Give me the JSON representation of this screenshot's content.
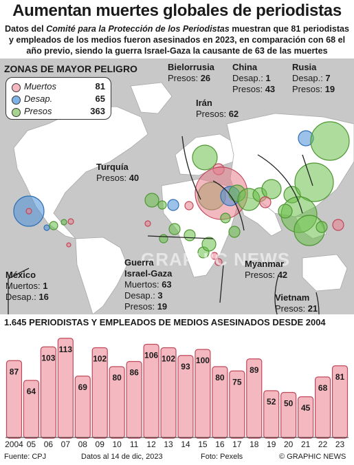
{
  "title": "Aumentan muertes globales de periodistas",
  "subtitle": {
    "part1": "Datos del ",
    "org": "Comité para la Protección de los Periodistas",
    "part2": " muestran que 81 periodistas y empleados de los medios fueron asesinados en 2023, en comparación con 68 el año previo, siendo la guerra Israel-Gaza la causante de 63 de las muertes"
  },
  "zones": {
    "title": "ZONAS DE MAYOR PELIGRO",
    "legend": [
      {
        "label": "Muertos",
        "value": "81",
        "color": "#e87f8e"
      },
      {
        "label": "Desap.",
        "value": "65",
        "color": "#4a90d9"
      },
      {
        "label": "Presos",
        "value": "363",
        "color": "#6cbf4b"
      }
    ]
  },
  "callouts": {
    "bielorrusia": {
      "name": "Bielorrusia",
      "l1": "Presos: ",
      "v1": "26"
    },
    "china": {
      "name": "China",
      "l1": "Desap.: ",
      "v1": "1",
      "l2": "Presos: ",
      "v2": "43"
    },
    "rusia": {
      "name": "Rusia",
      "l1": "Desap.: ",
      "v1": "7",
      "l2": "Presos: ",
      "v2": "19"
    },
    "iran": {
      "name": "Irán",
      "l1": "Presos: ",
      "v1": "62"
    },
    "turquia": {
      "name": "Turquía",
      "l1": "Presos: ",
      "v1": "40"
    },
    "mexico": {
      "name": "México",
      "l1": "Muertos: ",
      "v1": "1",
      "l2": "Desap.: ",
      "v2": "16"
    },
    "guerra": {
      "name1": "Guerra",
      "name2": "Israel-Gaza",
      "l1": "Muertos: ",
      "v1": "63",
      "l2": "Desap.: ",
      "v2": "3",
      "l3": "Presos: ",
      "v3": "19"
    },
    "myanmar": {
      "name": "Myanmar",
      "l1": "Presos: ",
      "v1": "42"
    },
    "vietnam": {
      "name": "Vietnam",
      "l1": "Presos: ",
      "v1": "21"
    }
  },
  "watermark": "GRAPHIC NEWS",
  "chart_title": "1.645 PERIODISTAS Y EMPLEADOS DE MEDIOS ASESINADOS DESDE 2004",
  "chart_data": {
    "type": "bar",
    "title": "1.645 PERIODISTAS Y EMPLEADOS DE MEDIOS ASESINADOS DESDE 2004",
    "categories": [
      "2004",
      "05",
      "06",
      "07",
      "08",
      "09",
      "10",
      "11",
      "12",
      "13",
      "14",
      "15",
      "16",
      "17",
      "18",
      "19",
      "20",
      "21",
      "22",
      "23"
    ],
    "values": [
      87,
      64,
      103,
      113,
      69,
      102,
      80,
      86,
      106,
      102,
      93,
      100,
      80,
      75,
      89,
      52,
      50,
      45,
      68,
      81
    ],
    "ylim": [
      0,
      120
    ],
    "bar_color": "#f4b8c0",
    "bar_stroke": "#c0475a",
    "xlabel": "",
    "ylabel": ""
  },
  "footer": {
    "source": "Fuente: CPJ",
    "date": "Datos al 14 de dic, 2023",
    "photo": "Foto: Pexels",
    "credit": "© GRAPHIC NEWS"
  }
}
